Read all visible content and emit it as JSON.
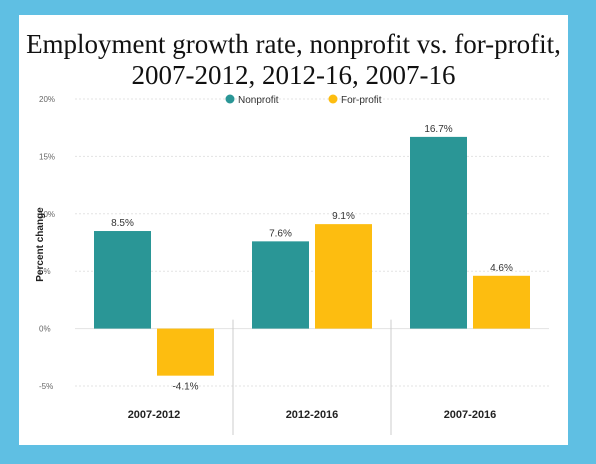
{
  "chart_data": {
    "type": "bar",
    "title": "Employment growth rate, nonprofit vs. for-profit, 2007-2012, 2012-16, 2007-16",
    "title_lines": [
      "Employment growth rate, nonprofit vs. for-profit,",
      "2007-2012, 2012-16, 2007-16"
    ],
    "ylabel": "Percent change",
    "xlabel": "",
    "categories": [
      "2007-2012",
      "2012-2016",
      "2007-2016"
    ],
    "series": [
      {
        "name": "Nonprofit",
        "color": "#2a9696",
        "values": [
          8.5,
          7.6,
          16.7
        ],
        "labels": [
          "8.5%",
          "7.6%",
          "16.7%"
        ]
      },
      {
        "name": "For-profit",
        "color": "#fdbd10",
        "values": [
          -4.1,
          9.1,
          4.6
        ],
        "labels": [
          "-4.1%",
          "9.1%",
          "4.6%"
        ]
      }
    ],
    "ylim": [
      -5,
      20
    ],
    "yticks": [
      20,
      15,
      10,
      5,
      0,
      -5
    ],
    "ytick_labels": [
      "20%",
      "15%",
      "10%",
      "5%",
      "0%",
      "-5%"
    ],
    "legend_position": "top-center",
    "grid": true
  }
}
